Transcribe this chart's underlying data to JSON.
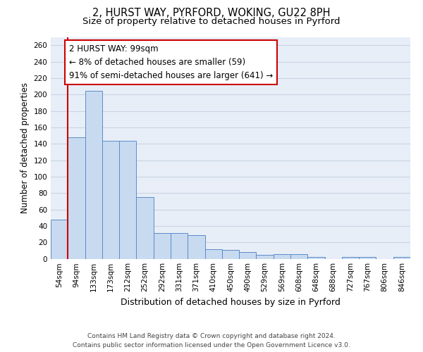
{
  "title_line1": "2, HURST WAY, PYRFORD, WOKING, GU22 8PH",
  "title_line2": "Size of property relative to detached houses in Pyrford",
  "xlabel": "Distribution of detached houses by size in Pyrford",
  "ylabel": "Number of detached properties",
  "categories": [
    "54sqm",
    "94sqm",
    "133sqm",
    "173sqm",
    "212sqm",
    "252sqm",
    "292sqm",
    "331sqm",
    "371sqm",
    "410sqm",
    "450sqm",
    "490sqm",
    "529sqm",
    "569sqm",
    "608sqm",
    "648sqm",
    "688sqm",
    "727sqm",
    "767sqm",
    "806sqm",
    "846sqm"
  ],
  "values": [
    48,
    148,
    204,
    144,
    144,
    75,
    31,
    31,
    29,
    12,
    11,
    8,
    5,
    6,
    6,
    2,
    0,
    2,
    2,
    0,
    2
  ],
  "bar_color": "#c8daf0",
  "bar_edge_color": "#5b8cc8",
  "red_line_x": 1.0,
  "annotation_text": "2 HURST WAY: 99sqm\n← 8% of detached houses are smaller (59)\n91% of semi-detached houses are larger (641) →",
  "annotation_box_facecolor": "white",
  "annotation_box_edgecolor": "#cc0000",
  "ylim": [
    0,
    270
  ],
  "yticks": [
    0,
    20,
    40,
    60,
    80,
    100,
    120,
    140,
    160,
    180,
    200,
    220,
    240,
    260
  ],
  "grid_color": "#c8d4e4",
  "bg_color": "#e8eef8",
  "footer_text": "Contains HM Land Registry data © Crown copyright and database right 2024.\nContains public sector information licensed under the Open Government Licence v3.0.",
  "title1_fontsize": 10.5,
  "title2_fontsize": 9.5,
  "ylabel_fontsize": 8.5,
  "xlabel_fontsize": 9,
  "tick_fontsize": 7.5,
  "annot_fontsize": 8.5,
  "footer_fontsize": 6.5
}
